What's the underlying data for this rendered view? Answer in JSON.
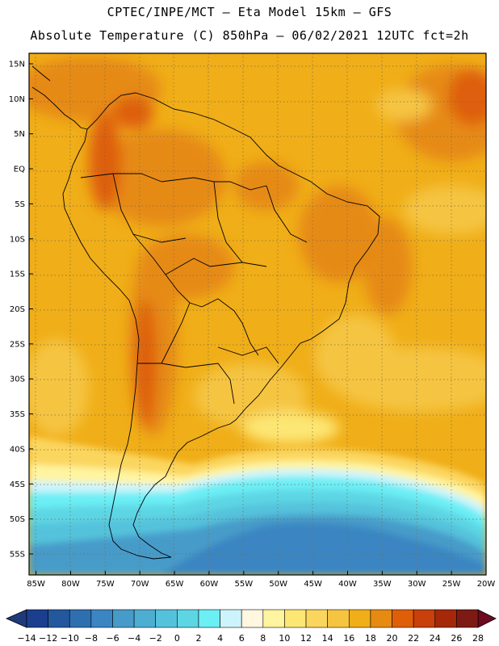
{
  "header": {
    "line1": "CPTEC/INPE/MCT –  Eta Model 15km – GFS",
    "line2": "Absolute Temperature (C) 850hPa – 06/02/2021 12UTC fct=2h"
  },
  "map": {
    "lat_labels": [
      "15N",
      "10N",
      "5N",
      "EQ",
      "5S",
      "10S",
      "15S",
      "20S",
      "25S",
      "30S",
      "35S",
      "40S",
      "45S",
      "50S",
      "55S"
    ],
    "lon_labels": [
      "85W",
      "80W",
      "75W",
      "70W",
      "65W",
      "60W",
      "55W",
      "50W",
      "45W",
      "40W",
      "35W",
      "30W",
      "25W",
      "20W"
    ],
    "lat_values": [
      15,
      10,
      5,
      0,
      -5,
      -10,
      -15,
      -20,
      -25,
      -30,
      -35,
      -40,
      -45,
      -50,
      -55
    ],
    "lon_values": [
      -85,
      -80,
      -75,
      -70,
      -65,
      -60,
      -55,
      -50,
      -45,
      -40,
      -35,
      -30,
      -25,
      -20
    ],
    "lat_range": [
      -58,
      16.5
    ],
    "lon_range": [
      -86,
      -20
    ],
    "grid": "dotted"
  },
  "colorbar": {
    "labels": [
      "-14",
      "-12",
      "-10",
      "-8",
      "-6",
      "-4",
      "-2",
      "0",
      "2",
      "4",
      "6",
      "8",
      "10",
      "12",
      "14",
      "16",
      "18",
      "20",
      "22",
      "24",
      "26",
      "28"
    ],
    "colors": [
      "#1b3f8e",
      "#23589e",
      "#2e6fb0",
      "#3b86c2",
      "#479bc9",
      "#4eaed2",
      "#55c2db",
      "#5dd6e4",
      "#6ceef5",
      "#cdf4fb",
      "#fff7e0",
      "#fff4a0",
      "#fde774",
      "#fbd65e",
      "#f5c542",
      "#f0ae18",
      "#e68a12",
      "#de5f07",
      "#c9400a",
      "#a52808",
      "#7e1a14"
    ],
    "low_arrow_color": "#1e3a7a",
    "high_arrow_color": "#6b0a20"
  }
}
